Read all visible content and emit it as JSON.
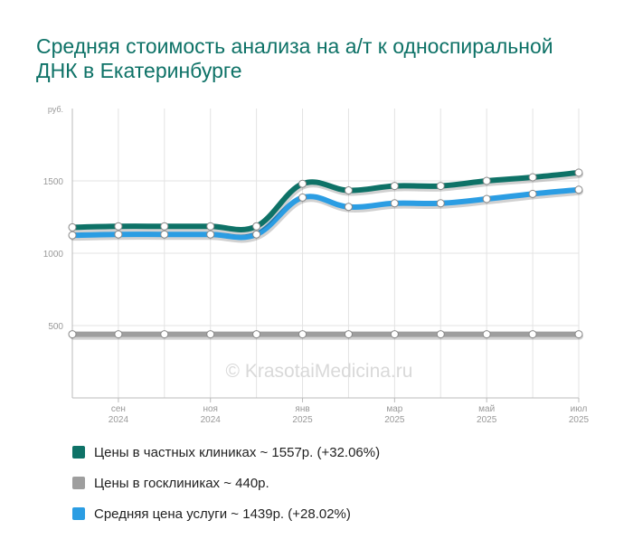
{
  "chart_data": {
    "type": "line",
    "title": "Средняя стоимость анализа на а/т к односпиральной ДНК в Екатеринбурге",
    "ylabel": "руб.",
    "xlabel": "",
    "ylim": [
      0,
      2000
    ],
    "yticks": [
      500,
      1000,
      1500
    ],
    "grid": true,
    "x_tick_labels": [
      {
        "index": 1,
        "month": "сен",
        "year": "2024"
      },
      {
        "index": 3,
        "month": "ноя",
        "year": "2024"
      },
      {
        "index": 5,
        "month": "янв",
        "year": "2025"
      },
      {
        "index": 7,
        "month": "мар",
        "year": "2025"
      },
      {
        "index": 9,
        "month": "май",
        "year": "2025"
      },
      {
        "index": 11,
        "month": "июл",
        "year": "2025"
      }
    ],
    "watermark": "© KrasotaiMedicina.ru",
    "series": [
      {
        "name": "Цены в госклиниках",
        "legend": "Цены в госклиниках ~ 440р.",
        "color": "#9e9e9e",
        "values": [
          440,
          440,
          440,
          440,
          440,
          440,
          440,
          440,
          440,
          440,
          440,
          440
        ]
      },
      {
        "name": "Средняя цена услуги",
        "legend": "Средняя цена услуги ~ 1439р. (+28.02%)",
        "color": "#2b9de3",
        "values": [
          1124,
          1130,
          1130,
          1130,
          1130,
          1385,
          1320,
          1345,
          1345,
          1375,
          1410,
          1439
        ]
      },
      {
        "name": "Цены в частных клиниках",
        "legend": "Цены в частных клиниках ~ 1557р. (+32.06%)",
        "color": "#0e7267",
        "values": [
          1179,
          1186,
          1186,
          1186,
          1186,
          1480,
          1434,
          1465,
          1465,
          1500,
          1525,
          1557
        ]
      }
    ],
    "legend_order": [
      2,
      0,
      1
    ]
  }
}
